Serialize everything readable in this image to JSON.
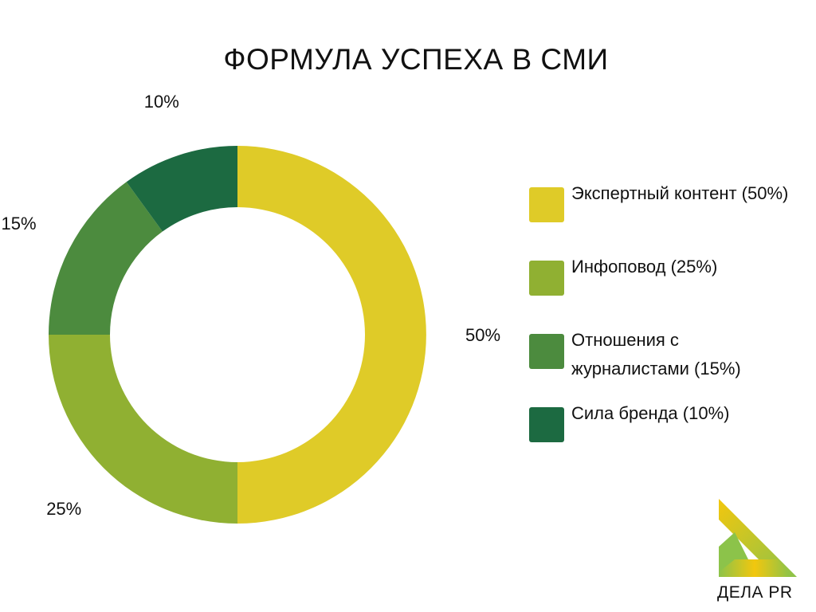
{
  "title": "ФОРМУЛА УСПЕХА В СМИ",
  "chart_data": {
    "type": "pie",
    "donut": true,
    "title": "ФОРМУЛА УСПЕХА В СМИ",
    "categories": [
      "Экспертный контент",
      "Инфоповод",
      "Отношения с журналистами",
      "Сила бренда"
    ],
    "values": [
      50,
      25,
      15,
      10
    ],
    "data_labels": [
      "50%",
      "25%",
      "15%",
      "10%"
    ],
    "colors": [
      "#dfcb28",
      "#90b032",
      "#4c8b3e",
      "#1c6a41"
    ],
    "legend": [
      {
        "label": "Экспертный контент (50%)",
        "color": "#dfcb28"
      },
      {
        "label": "Инфоповод (25%)",
        "color": "#90b032"
      },
      {
        "label": "Отношения с журналистами (15%)",
        "color": "#4c8b3e"
      },
      {
        "label": "Сила бренда (10%)",
        "color": "#1c6a41"
      }
    ],
    "legend_position": "right"
  },
  "logo": {
    "text": "ДЕЛА PR",
    "colors": [
      "#f2c70e",
      "#8cc34a"
    ]
  }
}
